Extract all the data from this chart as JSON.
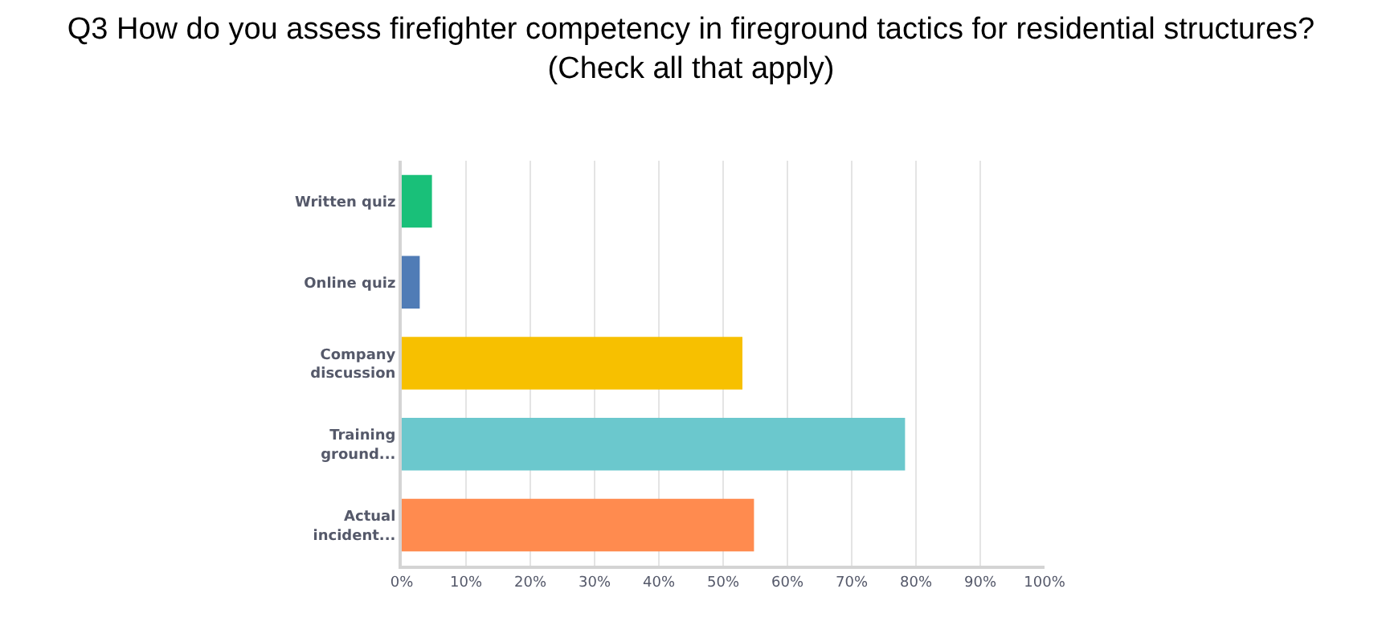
{
  "chart_data": {
    "type": "bar",
    "orientation": "horizontal",
    "title": "Q3 How do you assess firefighter competency in fireground tactics for residential structures?\n(Check all that apply)",
    "categories": [
      "Written quiz",
      "Online quiz",
      "Company discussion",
      "Training ground...",
      "Actual incident..."
    ],
    "values": [
      4.7,
      2.8,
      53,
      78.3,
      54.8
    ],
    "colors": [
      "#19c079",
      "#507cb6",
      "#f7c000",
      "#6bc8cd",
      "#ff8b4f"
    ],
    "xlim": [
      0,
      100
    ],
    "xticks": [
      {
        "value": 0,
        "label": "0%"
      },
      {
        "value": 10,
        "label": "10%"
      },
      {
        "value": 20,
        "label": "20%"
      },
      {
        "value": 30,
        "label": "30%"
      },
      {
        "value": 40,
        "label": "40%"
      },
      {
        "value": 50,
        "label": "50%"
      },
      {
        "value": 60,
        "label": "60%"
      },
      {
        "value": 70,
        "label": "70%"
      },
      {
        "value": 80,
        "label": "80%"
      },
      {
        "value": 90,
        "label": "90%"
      },
      {
        "value": 100,
        "label": "100%"
      }
    ],
    "grid": "x"
  }
}
